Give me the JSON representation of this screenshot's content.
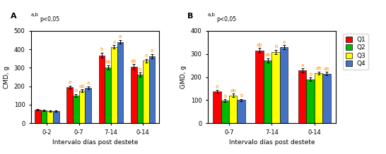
{
  "chart_data": [
    {
      "type": "bar",
      "title": "A",
      "annotations": [
        "a,b",
        "p<0,05"
      ],
      "ylabel": "CMD, g",
      "xlabel": "Intervalo días post destete",
      "ylim": [
        0,
        500
      ],
      "yticks": [
        0,
        100,
        200,
        300,
        400,
        500
      ],
      "categories": [
        "0-2",
        "0-7",
        "7-14",
        "0-14"
      ],
      "series": [
        {
          "name": "Q1",
          "color": "#FF0000",
          "values": [
            72,
            195,
            367,
            305
          ],
          "errors": [
            4,
            9,
            14,
            14
          ],
          "annotations": [
            null,
            "a",
            "b",
            "ab"
          ]
        },
        {
          "name": "Q2",
          "color": "#00BB00",
          "values": [
            68,
            150,
            302,
            263
          ],
          "errors": [
            4,
            7,
            12,
            10
          ],
          "annotations": [
            null,
            "b",
            "ab",
            "b"
          ]
        },
        {
          "name": "Q3",
          "color": "#FFFF00",
          "values": [
            65,
            176,
            413,
            338
          ],
          "errors": [
            4,
            7,
            9,
            9
          ],
          "annotations": [
            null,
            "ab",
            "a",
            "a"
          ]
        },
        {
          "name": "Q4",
          "color": "#4472C4",
          "values": [
            65,
            192,
            440,
            363
          ],
          "errors": [
            4,
            7,
            11,
            11
          ],
          "annotations": [
            null,
            "a",
            "a",
            "a"
          ]
        }
      ]
    },
    {
      "type": "bar",
      "title": "B",
      "annotations": [
        "a,b",
        "p<0,05"
      ],
      "ylabel": "GMD, g",
      "xlabel": "Intervalo días post destete",
      "ylim": [
        0,
        400
      ],
      "yticks": [
        0,
        100,
        200,
        300,
        400
      ],
      "categories": [
        "0-7",
        "7-14",
        "0-14"
      ],
      "legend": "upper left",
      "series": [
        {
          "name": "Q1",
          "color": "#FF0000",
          "values": [
            138,
            315,
            228
          ],
          "errors": [
            7,
            10,
            9
          ],
          "annotations": [
            "a",
            "ab",
            "a"
          ]
        },
        {
          "name": "Q2",
          "color": "#00BB00",
          "values": [
            98,
            272,
            190
          ],
          "errors": [
            5,
            9,
            7
          ],
          "annotations": [
            "b",
            "ab",
            "b"
          ]
        },
        {
          "name": "Q3",
          "color": "#FFFF00",
          "values": [
            120,
            308,
            217
          ],
          "errors": [
            7,
            9,
            7
          ],
          "annotations": [
            "ab",
            "b",
            "ab"
          ]
        },
        {
          "name": "Q4",
          "color": "#4472C4",
          "values": [
            100,
            328,
            215
          ],
          "errors": [
            5,
            9,
            7
          ],
          "annotations": [
            "b",
            "a",
            "ab"
          ]
        }
      ]
    }
  ]
}
